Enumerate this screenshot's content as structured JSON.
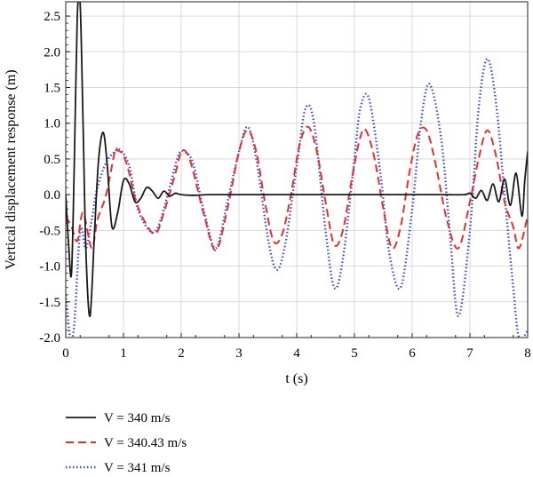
{
  "chart_data": {
    "type": "line",
    "xlabel": "t (s)",
    "ylabel": "Vertical displacement response (m)",
    "xlim": [
      0,
      8
    ],
    "ylim": [
      -2.0,
      2.7
    ],
    "x_ticks": [
      0,
      1,
      2,
      3,
      4,
      5,
      6,
      7,
      8
    ],
    "x_tick_labels": [
      "0",
      "1",
      "2",
      "3",
      "4",
      "5",
      "6",
      "7",
      "8"
    ],
    "y_ticks": [
      -2.0,
      -1.5,
      -1.0,
      -0.5,
      0.0,
      0.5,
      1.0,
      1.5,
      2.0,
      2.5
    ],
    "y_tick_labels": [
      "-2.0",
      "-1.5",
      "-1.0",
      "-0.5",
      "0.0",
      "0.5",
      "1.0",
      "1.5",
      "2.0",
      "2.5"
    ],
    "grid": true,
    "legend_position": "bottom-left",
    "series": [
      {
        "name": "V = 340 m/s",
        "color": "#1a1a1a",
        "dash": "solid",
        "x": [
          0,
          0.05,
          0.1,
          0.15,
          0.2,
          0.25,
          0.3,
          0.35,
          0.42,
          0.5,
          0.57,
          0.65,
          0.72,
          0.8,
          0.9,
          1.0,
          1.1,
          1.2,
          1.3,
          1.4,
          1.5,
          1.6,
          1.7,
          1.8,
          1.9,
          2.0,
          2.2,
          2.5,
          3.0,
          3.5,
          4.0,
          4.5,
          5.0,
          5.5,
          6.0,
          6.5,
          6.9,
          7.0,
          7.1,
          7.2,
          7.3,
          7.4,
          7.5,
          7.6,
          7.7,
          7.8,
          7.9,
          7.95,
          8.0
        ],
        "y": [
          0.0,
          -0.7,
          -1.1,
          0.5,
          2.5,
          2.66,
          1.0,
          -0.8,
          -1.7,
          -0.5,
          0.5,
          0.87,
          0.4,
          -0.45,
          -0.25,
          0.2,
          0.15,
          -0.1,
          -0.05,
          0.1,
          0.05,
          -0.05,
          0.05,
          -0.02,
          0.02,
          0.0,
          -0.01,
          0.0,
          0.0,
          0.0,
          0.0,
          0.0,
          0.0,
          0.0,
          0.0,
          0.0,
          0.0,
          0.02,
          -0.05,
          0.06,
          -0.08,
          0.15,
          -0.1,
          0.22,
          -0.15,
          0.3,
          -0.3,
          0.2,
          0.6
        ]
      },
      {
        "name": "V = 340.43 m/s",
        "color": "#e83030",
        "dash": "dashed",
        "x": [
          0,
          0.1,
          0.2,
          0.3,
          0.45,
          0.55,
          0.7,
          0.85,
          0.9,
          1.0,
          1.1,
          1.2,
          1.35,
          1.55,
          1.7,
          1.9,
          2.0,
          2.1,
          2.2,
          2.4,
          2.6,
          2.8,
          3.0,
          3.15,
          3.3,
          3.45,
          3.6,
          3.75,
          3.9,
          4.05,
          4.2,
          4.35,
          4.5,
          4.65,
          4.8,
          4.95,
          5.1,
          5.2,
          5.35,
          5.5,
          5.65,
          5.8,
          5.95,
          6.1,
          6.25,
          6.4,
          6.6,
          6.8,
          7.0,
          7.15,
          7.3,
          7.45,
          7.6,
          7.75,
          7.85,
          8.0
        ],
        "y": [
          -0.3,
          -0.45,
          -0.65,
          -0.25,
          -0.75,
          -0.35,
          0.0,
          0.6,
          0.62,
          0.55,
          0.3,
          -0.05,
          -0.35,
          -0.55,
          -0.25,
          0.3,
          0.6,
          0.58,
          0.35,
          -0.3,
          -0.78,
          -0.2,
          0.6,
          0.9,
          0.6,
          -0.1,
          -0.65,
          -0.55,
          0.0,
          0.7,
          0.95,
          0.6,
          -0.1,
          -0.7,
          -0.5,
          0.2,
          0.8,
          0.9,
          0.5,
          -0.2,
          -0.75,
          -0.45,
          0.3,
          0.85,
          0.9,
          0.45,
          -0.35,
          -0.75,
          -0.1,
          0.5,
          0.9,
          0.55,
          -0.1,
          -0.45,
          -0.75,
          -0.3
        ]
      },
      {
        "name": "V = 341 m/s",
        "color": "#3a4fd0",
        "dash": "dotted",
        "x": [
          0,
          0.08,
          0.15,
          0.25,
          0.35,
          0.45,
          0.55,
          0.7,
          0.85,
          0.95,
          1.1,
          1.25,
          1.45,
          1.6,
          1.8,
          1.95,
          2.05,
          2.2,
          2.4,
          2.6,
          2.8,
          3.0,
          3.15,
          3.3,
          3.5,
          3.65,
          3.8,
          4.0,
          4.15,
          4.3,
          4.5,
          4.65,
          4.8,
          5.0,
          5.1,
          5.25,
          5.45,
          5.6,
          5.8,
          6.0,
          6.15,
          6.3,
          6.5,
          6.65,
          6.8,
          7.0,
          7.15,
          7.3,
          7.45,
          7.6,
          7.75,
          7.85,
          8.0
        ],
        "y": [
          -1.4,
          -2.0,
          -1.8,
          -0.5,
          -0.75,
          -0.35,
          0.1,
          0.45,
          0.6,
          0.62,
          0.4,
          -0.2,
          -0.5,
          -0.45,
          0.1,
          0.55,
          0.6,
          0.45,
          -0.25,
          -0.75,
          -0.1,
          0.6,
          0.95,
          0.5,
          -0.6,
          -1.05,
          -0.7,
          0.4,
          1.2,
          1.0,
          -0.5,
          -1.3,
          -0.9,
          0.5,
          1.2,
          1.35,
          0.3,
          -0.8,
          -1.3,
          -0.2,
          1.0,
          1.55,
          0.8,
          -0.5,
          -1.7,
          -0.5,
          1.2,
          1.9,
          1.3,
          0.0,
          -1.3,
          -2.0,
          -1.9
        ]
      }
    ]
  }
}
